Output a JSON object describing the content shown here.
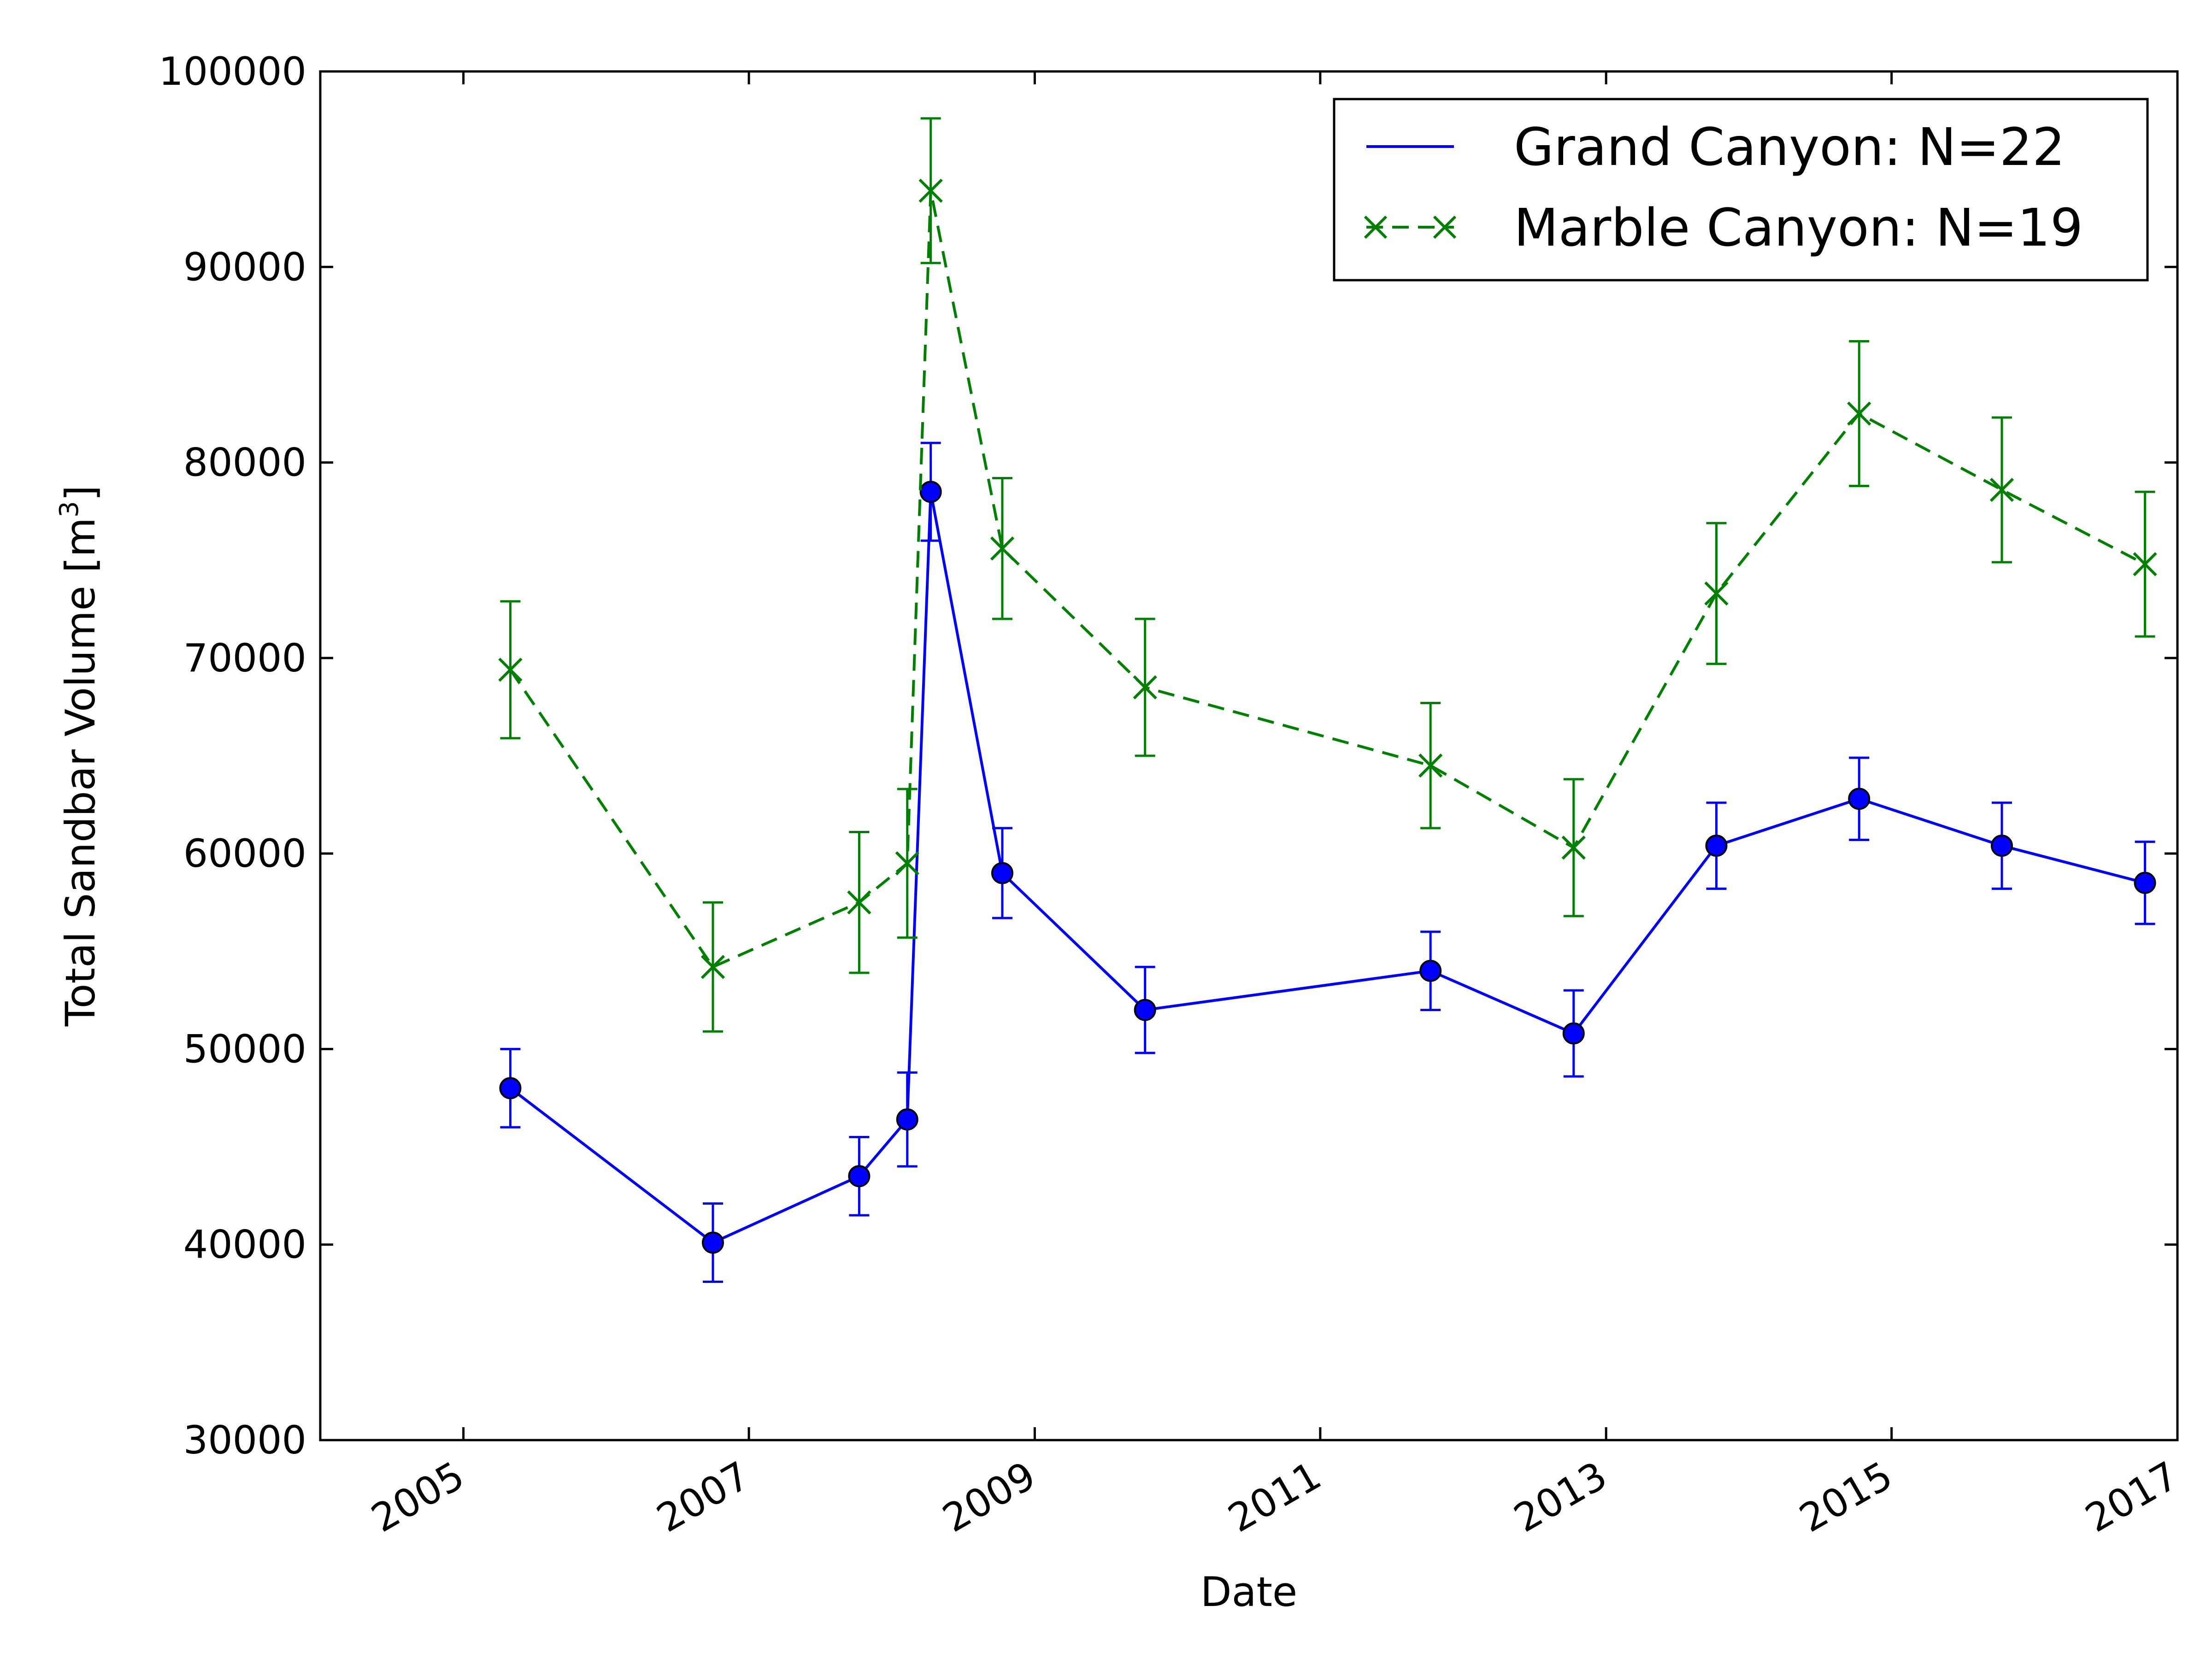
{
  "chart_data": {
    "type": "line",
    "xlabel": "Date",
    "ylabel": "Total Sandbar Volume [m",
    "ylabel_superscript": "3",
    "ylabel_suffix": "]",
    "x_range": [
      "2004-01-01",
      "2017-01-01"
    ],
    "y_range": [
      30000,
      100000
    ],
    "x_ticks": [
      "2005-01-01",
      "2007-01-01",
      "2009-01-01",
      "2011-01-01",
      "2013-01-01",
      "2015-01-01",
      "2017-01-01"
    ],
    "x_tick_labels": [
      "2005",
      "2007",
      "2009",
      "2011",
      "2013",
      "2015",
      "2017"
    ],
    "y_ticks": [
      30000,
      40000,
      50000,
      60000,
      70000,
      80000,
      90000,
      100000
    ],
    "y_tick_labels": [
      "30000",
      "40000",
      "50000",
      "60000",
      "70000",
      "80000",
      "90000",
      "100000"
    ],
    "grid": false,
    "legend_position": "top-right",
    "series": [
      {
        "name": "Grand Canyon: N=22",
        "color": "#0000ff",
        "line_style": "solid",
        "marker": "circle",
        "points": [
          {
            "x": "2005-05-01",
            "y": 48000,
            "err": 2000
          },
          {
            "x": "2006-10-01",
            "y": 40100,
            "err": 2000
          },
          {
            "x": "2007-10-10",
            "y": 43500,
            "err": 2000
          },
          {
            "x": "2008-02-10",
            "y": 46400,
            "err": 2400
          },
          {
            "x": "2008-04-10",
            "y": 78500,
            "err": 2500
          },
          {
            "x": "2008-10-10",
            "y": 59000,
            "err": 2300
          },
          {
            "x": "2009-10-10",
            "y": 52000,
            "err": 2200
          },
          {
            "x": "2011-10-10",
            "y": 54000,
            "err": 2000
          },
          {
            "x": "2012-10-10",
            "y": 50800,
            "err": 2200
          },
          {
            "x": "2013-10-10",
            "y": 60400,
            "err": 2200
          },
          {
            "x": "2014-10-10",
            "y": 62800,
            "err": 2100
          },
          {
            "x": "2015-10-10",
            "y": 60400,
            "err": 2200
          },
          {
            "x": "2016-10-10",
            "y": 58500,
            "err": 2100
          }
        ]
      },
      {
        "name": "Marble Canyon: N=19",
        "color": "#008000",
        "line_style": "dashed",
        "marker": "x",
        "points": [
          {
            "x": "2005-05-01",
            "y": 69400,
            "err": 3500
          },
          {
            "x": "2006-10-01",
            "y": 54200,
            "err": 3300
          },
          {
            "x": "2007-10-10",
            "y": 57500,
            "err": 3600
          },
          {
            "x": "2008-02-10",
            "y": 59500,
            "err": 3800
          },
          {
            "x": "2008-04-10",
            "y": 93900,
            "err": 3700
          },
          {
            "x": "2008-10-10",
            "y": 75600,
            "err": 3600
          },
          {
            "x": "2009-10-10",
            "y": 68500,
            "err": 3500
          },
          {
            "x": "2011-10-10",
            "y": 64500,
            "err": 3200
          },
          {
            "x": "2012-10-10",
            "y": 60300,
            "err": 3500
          },
          {
            "x": "2013-10-10",
            "y": 73300,
            "err": 3600
          },
          {
            "x": "2014-10-10",
            "y": 82500,
            "err": 3700
          },
          {
            "x": "2015-10-10",
            "y": 78600,
            "err": 3700
          },
          {
            "x": "2016-10-10",
            "y": 74800,
            "err": 3700
          }
        ]
      }
    ]
  }
}
